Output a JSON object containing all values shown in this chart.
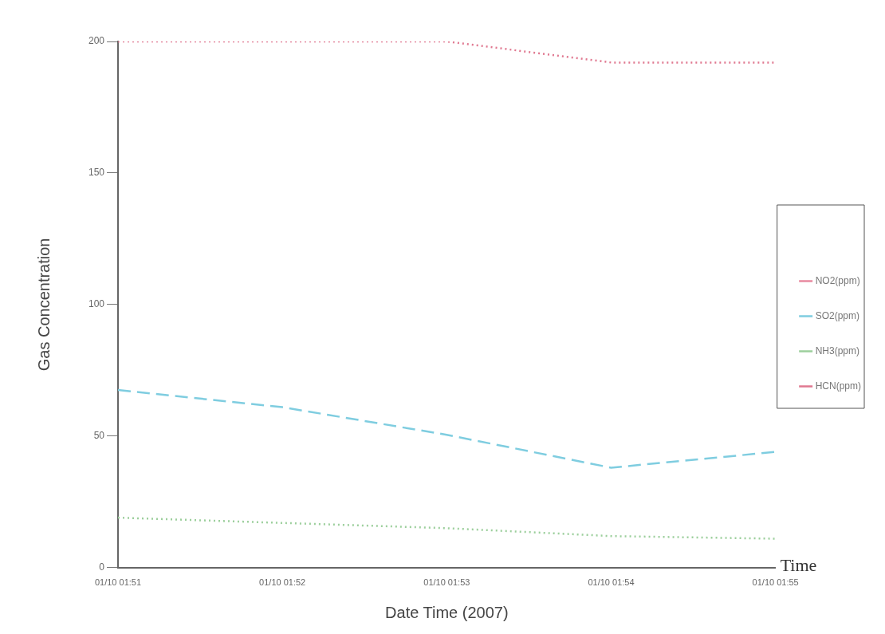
{
  "chart_data": {
    "type": "line",
    "xlabel": "Date Time (2007)",
    "ylabel": "Gas Concentration",
    "categories": [
      "01/10 01:51",
      "01/10 01:52",
      "01/10 01:53",
      "01/10 01:54",
      "01/10 01:55"
    ],
    "series": [
      {
        "name": "NO2(ppm)",
        "color": "#e88aa0",
        "line_style": "solid",
        "values": [
          null,
          null,
          null,
          null,
          null
        ]
      },
      {
        "name": "SO2(ppm)",
        "color": "#7fcde0",
        "line_style": "dashed",
        "values": [
          67.5,
          61,
          50.5,
          38,
          44
        ]
      },
      {
        "name": "NH3(ppm)",
        "color": "#9ccf9c",
        "line_style": "dotted",
        "values": [
          19,
          17,
          15,
          12,
          11
        ]
      },
      {
        "name": "HCN(ppm)",
        "color": "#e07890",
        "line_style": "dotted",
        "values": [
          200,
          200,
          200,
          192,
          192
        ]
      }
    ],
    "ylim": [
      0,
      200
    ],
    "yticks": [
      0,
      50,
      100,
      150,
      200
    ],
    "grid": false,
    "legend": "right",
    "marker": "none",
    "annotations": [
      "Time"
    ]
  }
}
